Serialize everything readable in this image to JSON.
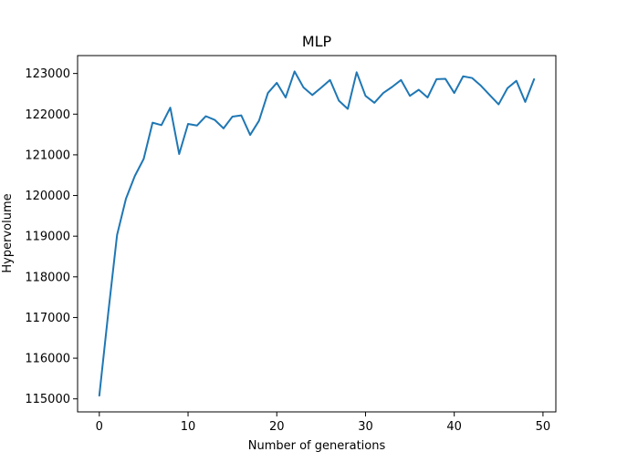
{
  "chart_data": {
    "type": "line",
    "title": "MLP",
    "xlabel": "Number of generations",
    "ylabel": "Hypervolume",
    "xlim": [
      -2.45,
      51.45
    ],
    "ylim": [
      114680,
      123440
    ],
    "x_ticks": [
      0,
      10,
      20,
      30,
      40,
      50
    ],
    "y_ticks": [
      115000,
      116000,
      117000,
      118000,
      119000,
      120000,
      121000,
      122000,
      123000
    ],
    "x_tick_labels": [
      "0",
      "10",
      "20",
      "30",
      "40",
      "50"
    ],
    "y_tick_labels": [
      "115000",
      "116000",
      "117000",
      "118000",
      "119000",
      "120000",
      "121000",
      "122000",
      "123000"
    ],
    "grid": false,
    "legend": "none",
    "series": [
      {
        "color": "#1f77b4",
        "x": [
          0,
          1,
          2,
          3,
          4,
          5,
          6,
          7,
          8,
          9,
          10,
          11,
          12,
          13,
          14,
          15,
          16,
          17,
          18,
          19,
          20,
          21,
          22,
          23,
          24,
          25,
          26,
          27,
          28,
          29,
          30,
          31,
          32,
          33,
          34,
          35,
          36,
          37,
          38,
          39,
          40,
          41,
          42,
          43,
          44,
          45,
          46,
          47,
          48,
          49
        ],
        "values": [
          115080,
          117100,
          119030,
          119920,
          120480,
          120900,
          121790,
          121730,
          122160,
          121020,
          121760,
          121720,
          121950,
          121860,
          121650,
          121940,
          121970,
          121490,
          121840,
          122520,
          122770,
          122410,
          123050,
          122660,
          122470,
          122650,
          122840,
          122330,
          122130,
          123030,
          122450,
          122280,
          122520,
          122670,
          122840,
          122450,
          122600,
          122410,
          122860,
          122870,
          122520,
          122930,
          122890,
          122700,
          122470,
          122240,
          122640,
          122820,
          122300,
          122860
        ]
      }
    ]
  }
}
